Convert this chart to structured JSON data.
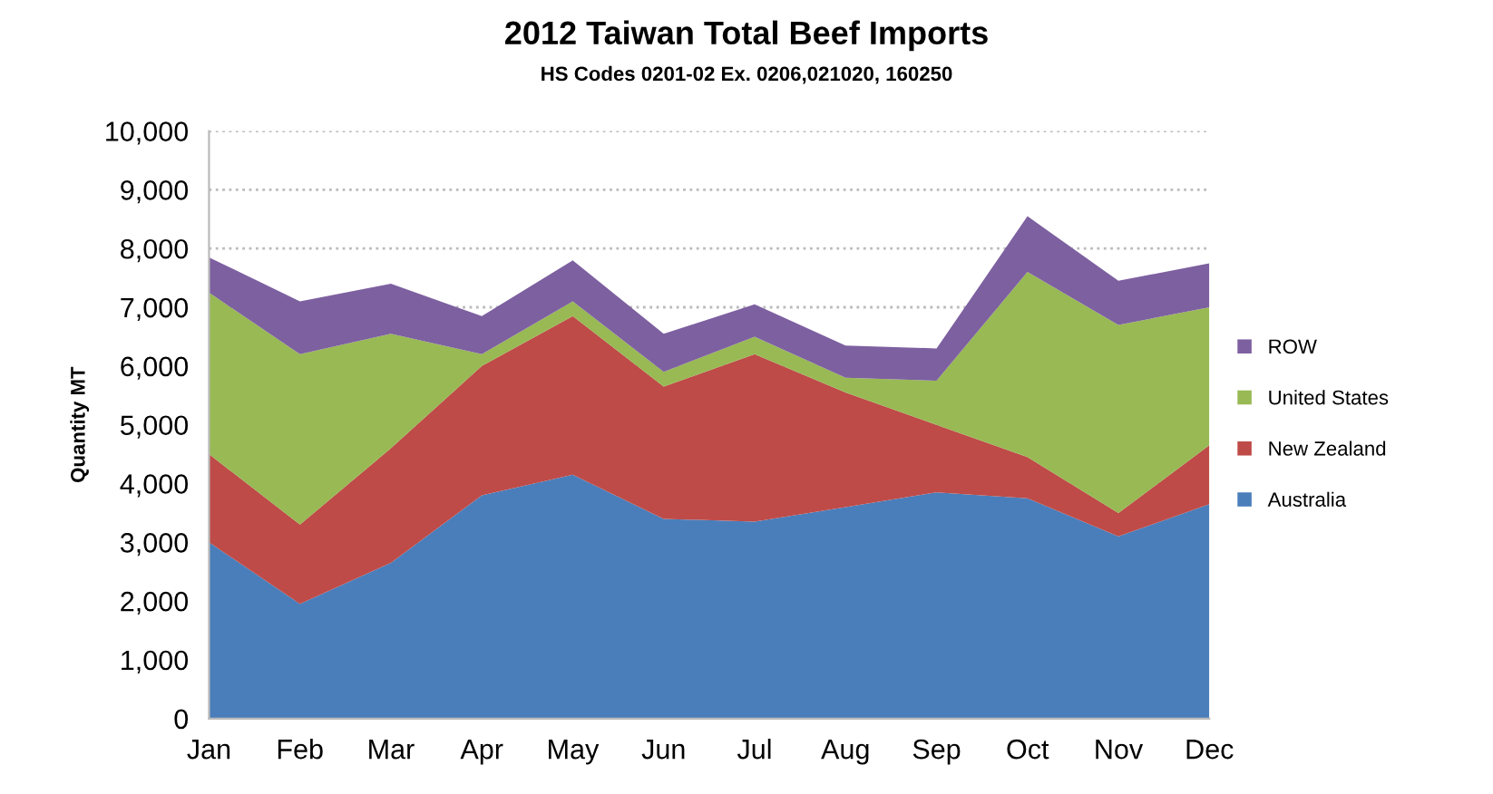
{
  "chart_data": {
    "type": "area",
    "stacked": true,
    "title": "2012 Taiwan Total Beef Imports",
    "subtitle": "HS Codes 0201-02 Ex. 0206,021020, 160250",
    "ylabel": "Quantity MT",
    "categories": [
      "Jan",
      "Feb",
      "Mar",
      "Apr",
      "May",
      "Jun",
      "Jul",
      "Aug",
      "Sep",
      "Oct",
      "Nov",
      "Dec"
    ],
    "series": [
      {
        "name": "Australia",
        "color": "#4a7ebb",
        "values": [
          3000,
          1950,
          2650,
          3800,
          4150,
          3400,
          3350,
          3600,
          3850,
          3750,
          3100,
          3650
        ]
      },
      {
        "name": "New Zealand",
        "color": "#be4b48",
        "values": [
          1500,
          1350,
          1950,
          2200,
          2700,
          2250,
          2850,
          1950,
          1150,
          700,
          400,
          1000
        ]
      },
      {
        "name": "United States",
        "color": "#98b954",
        "values": [
          2750,
          2900,
          1950,
          200,
          250,
          250,
          300,
          250,
          750,
          3150,
          3200,
          2350
        ]
      },
      {
        "name": "ROW",
        "color": "#7d60a0",
        "values": [
          600,
          900,
          850,
          650,
          700,
          650,
          550,
          550,
          550,
          950,
          750,
          750
        ]
      }
    ],
    "ylim": [
      0,
      10000
    ],
    "yticks": [
      0,
      {
        "value": 1000,
        "label": "1,000"
      },
      {
        "value": 2000,
        "label": "2,000"
      },
      {
        "value": 3000,
        "label": "3,000"
      },
      {
        "value": 4000,
        "label": "4,000"
      },
      {
        "value": 5000,
        "label": "5,000"
      },
      {
        "value": 6000,
        "label": "6,000"
      },
      {
        "value": 7000,
        "label": "7,000"
      },
      {
        "value": 8000,
        "label": "8,000"
      },
      {
        "value": 9000,
        "label": "9,000"
      },
      {
        "value": 10000,
        "label": "10,000"
      }
    ],
    "grid": "y",
    "legend": "right"
  }
}
